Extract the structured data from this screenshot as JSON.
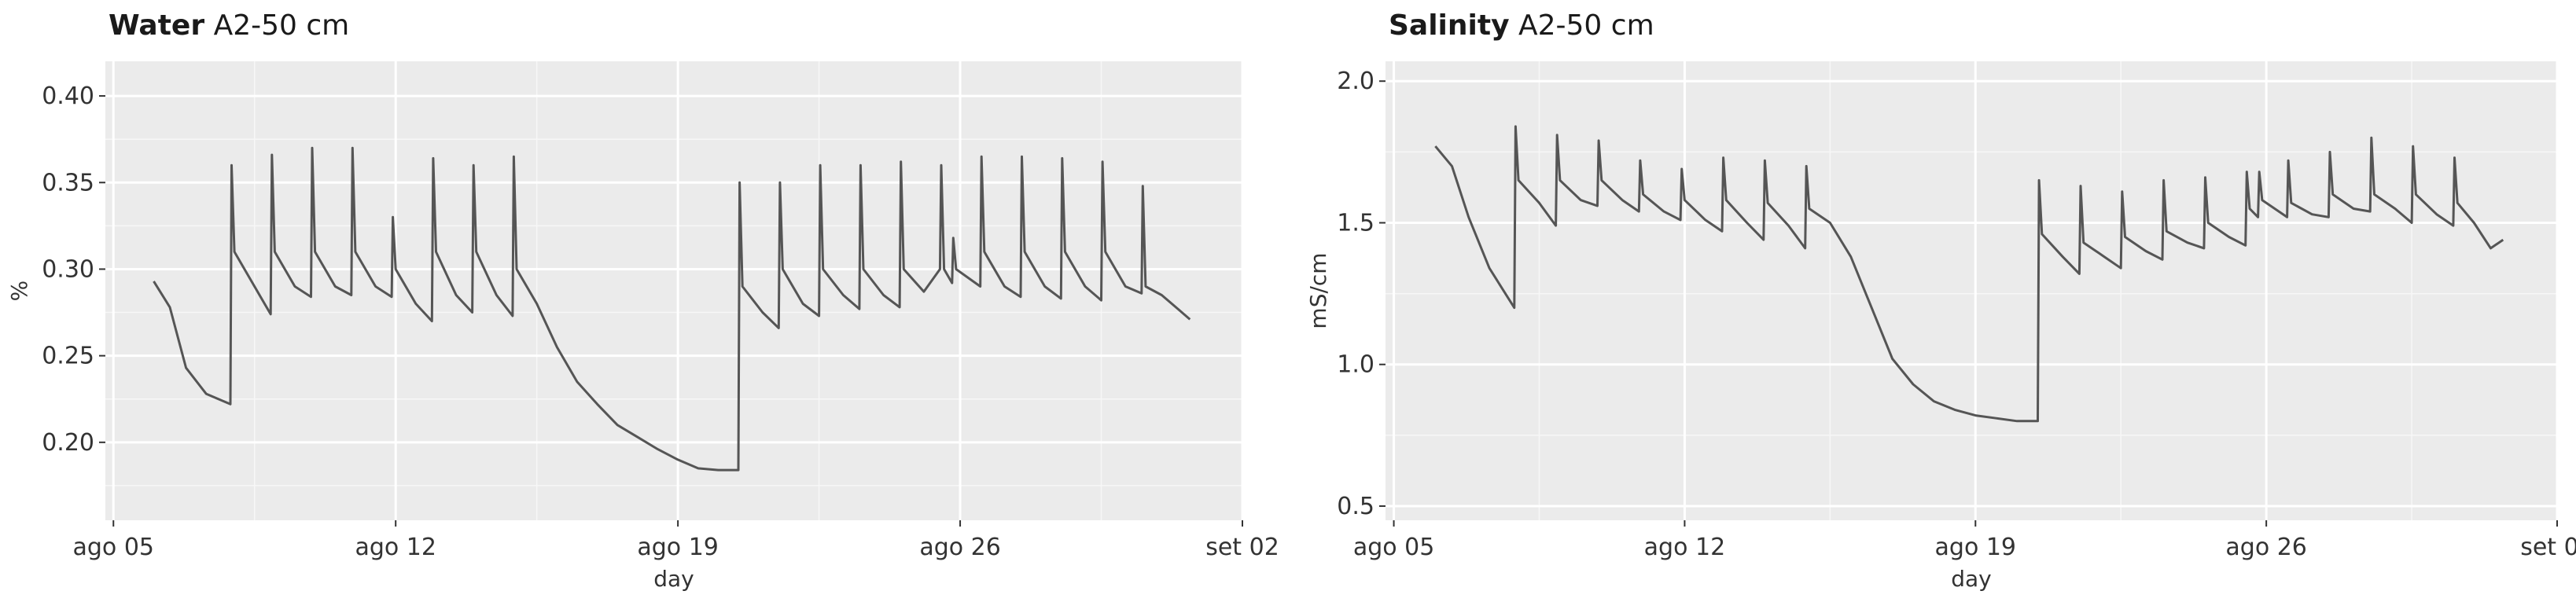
{
  "chart_data": [
    {
      "type": "line",
      "title": "Water",
      "subtitle": "A2-50 cm",
      "xlabel": "day",
      "ylabel": "%",
      "x_ticks": [
        "ago 05",
        "ago 12",
        "ago 19",
        "ago 26",
        "set 02"
      ],
      "x_tick_values": [
        5,
        12,
        19,
        26,
        33
      ],
      "xlim": [
        4.8,
        33
      ],
      "ylim": [
        0.155,
        0.42
      ],
      "y_ticks": [
        0.2,
        0.25,
        0.3,
        0.35,
        0.4
      ],
      "y_tick_labels": [
        "0.20",
        "0.25",
        "0.30",
        "0.35",
        "0.40"
      ],
      "grid": true,
      "legend": "none",
      "line_color": "#555555",
      "panel_color": "#ebebeb",
      "series": [
        {
          "x": [
            6.0,
            6.4,
            6.8,
            7.3,
            7.9,
            7.93,
            8.0,
            8.5,
            8.9,
            8.93,
            9.0,
            9.5,
            9.9,
            9.93,
            10.0,
            10.5,
            10.9,
            10.93,
            11.0,
            11.5,
            11.9,
            11.93,
            12.0,
            12.5,
            12.9,
            12.93,
            13.0,
            13.5,
            13.9,
            13.93,
            14.0,
            14.5,
            14.9,
            14.93,
            15.0,
            15.5,
            16.0,
            16.5,
            17.0,
            17.5,
            18.0,
            18.5,
            19.0,
            19.5,
            20.0,
            20.2,
            20.5,
            20.53,
            20.6,
            21.1,
            21.5,
            21.53,
            21.6,
            22.1,
            22.5,
            22.53,
            22.6,
            23.1,
            23.5,
            23.53,
            23.6,
            24.1,
            24.5,
            24.53,
            24.6,
            25.1,
            25.5,
            25.53,
            25.6,
            25.8,
            25.83,
            25.9,
            26.5,
            26.53,
            26.6,
            27.1,
            27.5,
            27.53,
            27.6,
            28.1,
            28.5,
            28.53,
            28.6,
            29.1,
            29.5,
            29.53,
            29.6,
            30.1,
            30.5,
            30.53,
            30.6,
            31.0,
            31.4,
            31.7
          ],
          "y": [
            0.293,
            0.278,
            0.243,
            0.228,
            0.222,
            0.36,
            0.31,
            0.29,
            0.274,
            0.366,
            0.31,
            0.29,
            0.284,
            0.37,
            0.31,
            0.29,
            0.285,
            0.37,
            0.31,
            0.29,
            0.284,
            0.33,
            0.3,
            0.28,
            0.27,
            0.364,
            0.31,
            0.285,
            0.275,
            0.36,
            0.31,
            0.285,
            0.273,
            0.365,
            0.3,
            0.28,
            0.255,
            0.235,
            0.222,
            0.21,
            0.203,
            0.196,
            0.19,
            0.185,
            0.184,
            0.184,
            0.184,
            0.35,
            0.29,
            0.275,
            0.266,
            0.35,
            0.3,
            0.28,
            0.273,
            0.36,
            0.3,
            0.285,
            0.277,
            0.36,
            0.3,
            0.285,
            0.278,
            0.362,
            0.3,
            0.287,
            0.3,
            0.36,
            0.3,
            0.292,
            0.318,
            0.3,
            0.29,
            0.365,
            0.31,
            0.29,
            0.284,
            0.365,
            0.31,
            0.29,
            0.283,
            0.364,
            0.31,
            0.29,
            0.282,
            0.362,
            0.31,
            0.29,
            0.286,
            0.348,
            0.29,
            0.285,
            0.277,
            0.271
          ]
        }
      ]
    },
    {
      "type": "line",
      "title": "Salinity",
      "subtitle": "A2-50 cm",
      "xlabel": "day",
      "ylabel": "mS/cm",
      "x_ticks": [
        "ago 05",
        "ago 12",
        "ago 19",
        "ago 26",
        "set 02"
      ],
      "x_tick_values": [
        5,
        12,
        19,
        26,
        33
      ],
      "xlim": [
        4.8,
        33
      ],
      "ylim": [
        0.45,
        2.07
      ],
      "y_ticks": [
        0.5,
        1.0,
        1.5,
        2.0
      ],
      "y_tick_labels": [
        "0.5",
        "1.0",
        "1.5",
        "2.0"
      ],
      "grid": true,
      "legend": "none",
      "line_color": "#555555",
      "panel_color": "#ebebeb",
      "series": [
        {
          "x": [
            6.0,
            6.4,
            6.8,
            7.3,
            7.9,
            7.93,
            8.0,
            8.5,
            8.9,
            8.93,
            9.0,
            9.5,
            9.9,
            9.93,
            10.0,
            10.5,
            10.9,
            10.93,
            11.0,
            11.5,
            11.9,
            11.93,
            12.0,
            12.5,
            12.9,
            12.93,
            13.0,
            13.5,
            13.9,
            13.93,
            14.0,
            14.5,
            14.9,
            14.93,
            15.0,
            15.5,
            16.0,
            16.5,
            17.0,
            17.5,
            18.0,
            18.5,
            19.0,
            19.5,
            20.0,
            20.2,
            20.5,
            20.53,
            20.6,
            21.1,
            21.5,
            21.53,
            21.6,
            22.1,
            22.5,
            22.53,
            22.6,
            23.1,
            23.5,
            23.53,
            23.6,
            24.1,
            24.5,
            24.53,
            24.6,
            25.1,
            25.5,
            25.53,
            25.6,
            25.8,
            25.83,
            25.9,
            26.5,
            26.53,
            26.6,
            27.1,
            27.5,
            27.53,
            27.6,
            28.1,
            28.5,
            28.53,
            28.6,
            29.1,
            29.5,
            29.53,
            29.6,
            30.1,
            30.5,
            30.53,
            30.6,
            31.0,
            31.4,
            31.7
          ],
          "y": [
            1.77,
            1.7,
            1.52,
            1.34,
            1.2,
            1.84,
            1.65,
            1.57,
            1.49,
            1.81,
            1.65,
            1.58,
            1.56,
            1.79,
            1.65,
            1.58,
            1.54,
            1.72,
            1.6,
            1.54,
            1.51,
            1.69,
            1.58,
            1.51,
            1.47,
            1.73,
            1.58,
            1.5,
            1.44,
            1.72,
            1.57,
            1.49,
            1.41,
            1.7,
            1.55,
            1.5,
            1.38,
            1.2,
            1.02,
            0.93,
            0.87,
            0.84,
            0.82,
            0.81,
            0.8,
            0.8,
            0.8,
            1.65,
            1.46,
            1.38,
            1.32,
            1.63,
            1.43,
            1.38,
            1.34,
            1.61,
            1.45,
            1.4,
            1.37,
            1.65,
            1.47,
            1.43,
            1.41,
            1.66,
            1.5,
            1.45,
            1.42,
            1.68,
            1.55,
            1.52,
            1.68,
            1.58,
            1.52,
            1.72,
            1.57,
            1.53,
            1.52,
            1.75,
            1.6,
            1.55,
            1.54,
            1.8,
            1.6,
            1.55,
            1.5,
            1.77,
            1.6,
            1.53,
            1.49,
            1.73,
            1.57,
            1.5,
            1.41,
            1.44
          ]
        }
      ]
    }
  ]
}
